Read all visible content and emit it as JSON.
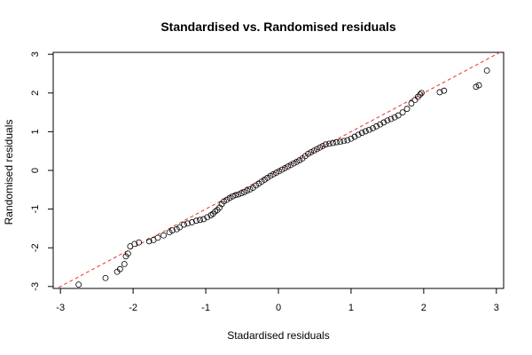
{
  "chart_data": {
    "type": "scatter",
    "title": "Standardised vs. Randomised residuals",
    "xlabel": "Stadardised residuals",
    "ylabel": "Randomised residuals",
    "xlim": [
      -3.1,
      3.1
    ],
    "ylim": [
      -3.05,
      3.05
    ],
    "x_ticks": [
      "-3",
      "-2",
      "-1",
      "0",
      "1",
      "2",
      "3"
    ],
    "y_ticks": [
      "-3",
      "-2",
      "-1",
      "0",
      "1",
      "2",
      "3"
    ],
    "grid": false,
    "legend": "none",
    "reference_line": {
      "slope": 1,
      "intercept": 0,
      "style": "dashed",
      "color": "#e8322b"
    },
    "marker": "open-circle",
    "points": [
      [
        -2.75,
        -2.95
      ],
      [
        -2.38,
        -2.78
      ],
      [
        -2.22,
        -2.62
      ],
      [
        -2.18,
        -2.55
      ],
      [
        -2.12,
        -2.42
      ],
      [
        -2.1,
        -2.22
      ],
      [
        -2.07,
        -2.15
      ],
      [
        -2.04,
        -1.96
      ],
      [
        -1.98,
        -1.9
      ],
      [
        -1.92,
        -1.86
      ],
      [
        -1.78,
        -1.83
      ],
      [
        -1.72,
        -1.8
      ],
      [
        -1.66,
        -1.74
      ],
      [
        -1.58,
        -1.68
      ],
      [
        -1.5,
        -1.6
      ],
      [
        -1.46,
        -1.55
      ],
      [
        -1.4,
        -1.52
      ],
      [
        -1.36,
        -1.47
      ],
      [
        -1.3,
        -1.4
      ],
      [
        -1.25,
        -1.37
      ],
      [
        -1.19,
        -1.34
      ],
      [
        -1.13,
        -1.3
      ],
      [
        -1.08,
        -1.28
      ],
      [
        -1.03,
        -1.26
      ],
      [
        -0.98,
        -1.21
      ],
      [
        -0.93,
        -1.16
      ],
      [
        -0.9,
        -1.12
      ],
      [
        -0.87,
        -1.06
      ],
      [
        -0.84,
        -1.02
      ],
      [
        -0.81,
        -0.96
      ],
      [
        -0.78,
        -0.87
      ],
      [
        -0.75,
        -0.8
      ],
      [
        -0.71,
        -0.76
      ],
      [
        -0.67,
        -0.71
      ],
      [
        -0.63,
        -0.67
      ],
      [
        -0.59,
        -0.64
      ],
      [
        -0.55,
        -0.62
      ],
      [
        -0.51,
        -0.59
      ],
      [
        -0.47,
        -0.56
      ],
      [
        -0.43,
        -0.52
      ],
      [
        -0.39,
        -0.49
      ],
      [
        -0.35,
        -0.45
      ],
      [
        -0.31,
        -0.39
      ],
      [
        -0.27,
        -0.34
      ],
      [
        -0.23,
        -0.29
      ],
      [
        -0.19,
        -0.24
      ],
      [
        -0.15,
        -0.19
      ],
      [
        -0.11,
        -0.14
      ],
      [
        -0.07,
        -0.1
      ],
      [
        -0.03,
        -0.06
      ],
      [
        0.01,
        -0.02
      ],
      [
        0.05,
        0.02
      ],
      [
        0.09,
        0.06
      ],
      [
        0.13,
        0.1
      ],
      [
        0.17,
        0.14
      ],
      [
        0.21,
        0.18
      ],
      [
        0.25,
        0.22
      ],
      [
        0.29,
        0.26
      ],
      [
        0.33,
        0.31
      ],
      [
        0.37,
        0.37
      ],
      [
        0.41,
        0.43
      ],
      [
        0.45,
        0.47
      ],
      [
        0.49,
        0.51
      ],
      [
        0.53,
        0.55
      ],
      [
        0.57,
        0.59
      ],
      [
        0.61,
        0.63
      ],
      [
        0.65,
        0.67
      ],
      [
        0.7,
        0.69
      ],
      [
        0.75,
        0.71
      ],
      [
        0.8,
        0.73
      ],
      [
        0.85,
        0.74
      ],
      [
        0.9,
        0.76
      ],
      [
        0.95,
        0.78
      ],
      [
        1.0,
        0.82
      ],
      [
        1.05,
        0.87
      ],
      [
        1.1,
        0.92
      ],
      [
        1.15,
        0.97
      ],
      [
        1.2,
        1.01
      ],
      [
        1.25,
        1.05
      ],
      [
        1.3,
        1.09
      ],
      [
        1.35,
        1.14
      ],
      [
        1.4,
        1.19
      ],
      [
        1.45,
        1.24
      ],
      [
        1.5,
        1.29
      ],
      [
        1.55,
        1.33
      ],
      [
        1.6,
        1.37
      ],
      [
        1.65,
        1.42
      ],
      [
        1.71,
        1.5
      ],
      [
        1.77,
        1.59
      ],
      [
        1.83,
        1.73
      ],
      [
        1.88,
        1.82
      ],
      [
        1.92,
        1.9
      ],
      [
        1.95,
        1.96
      ],
      [
        1.97,
        2.0
      ],
      [
        2.22,
        2.02
      ],
      [
        2.28,
        2.06
      ],
      [
        2.72,
        2.16
      ],
      [
        2.76,
        2.2
      ],
      [
        2.87,
        2.58
      ]
    ]
  }
}
